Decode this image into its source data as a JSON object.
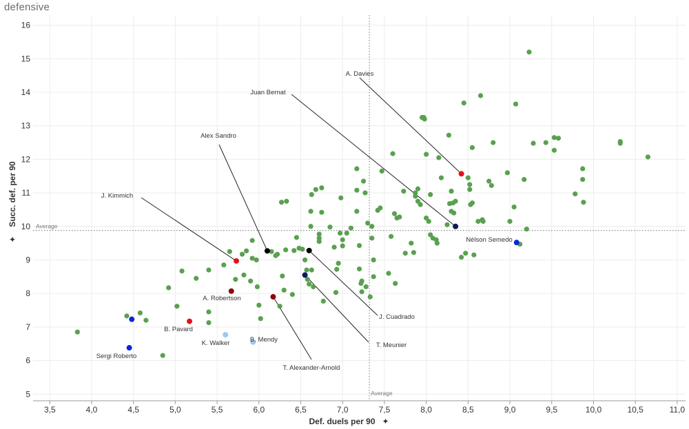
{
  "title": "defensive",
  "chart_data": {
    "type": "scatter",
    "xlabel": "Def. duels per 90",
    "ylabel": "Succ. def. per 90",
    "xlim": [
      3.3,
      11.1
    ],
    "ylim": [
      4.8,
      16.3
    ],
    "x_ticks": [
      3.5,
      4.0,
      4.5,
      5.0,
      5.5,
      6.0,
      6.5,
      7.0,
      7.5,
      8.0,
      8.5,
      9.0,
      9.5,
      10.0,
      10.5,
      11.0
    ],
    "x_tick_labels": [
      "3,5",
      "4,0",
      "4,5",
      "5,0",
      "5,5",
      "6,0",
      "6,5",
      "7,0",
      "7,5",
      "8,0",
      "8,5",
      "9,0",
      "9,5",
      "10,0",
      "10,5",
      "11,0"
    ],
    "y_ticks": [
      5,
      6,
      7,
      8,
      9,
      10,
      11,
      12,
      13,
      14,
      15,
      16
    ],
    "grid": true,
    "reference_lines": [
      {
        "axis": "x",
        "value": 7.32,
        "label": "Average"
      },
      {
        "axis": "y",
        "value": 9.88,
        "label": "Average"
      }
    ],
    "colors": {
      "default": "#59a14f",
      "red": "#e8101a",
      "dark_red": "#8b0a0a",
      "blue": "#0a28d8",
      "navy": "#0a1a5a",
      "black": "#000000",
      "light_blue": "#9fc8ea"
    },
    "points": [
      {
        "x": 3.83,
        "y": 6.85
      },
      {
        "x": 4.42,
        "y": 7.33
      },
      {
        "x": 4.58,
        "y": 7.42
      },
      {
        "x": 4.65,
        "y": 7.2
      },
      {
        "x": 4.85,
        "y": 6.15
      },
      {
        "x": 4.92,
        "y": 8.17
      },
      {
        "x": 5.02,
        "y": 7.62
      },
      {
        "x": 5.08,
        "y": 8.67
      },
      {
        "x": 5.25,
        "y": 8.45
      },
      {
        "x": 5.4,
        "y": 7.13
      },
      {
        "x": 5.4,
        "y": 7.45
      },
      {
        "x": 5.4,
        "y": 8.7
      },
      {
        "x": 5.58,
        "y": 8.85
      },
      {
        "x": 5.65,
        "y": 9.25
      },
      {
        "x": 5.72,
        "y": 8.42
      },
      {
        "x": 5.8,
        "y": 9.17
      },
      {
        "x": 5.82,
        "y": 8.55
      },
      {
        "x": 5.85,
        "y": 9.27
      },
      {
        "x": 5.9,
        "y": 8.37
      },
      {
        "x": 5.92,
        "y": 9.58
      },
      {
        "x": 5.92,
        "y": 9.05
      },
      {
        "x": 5.97,
        "y": 9.0
      },
      {
        "x": 5.98,
        "y": 8.2
      },
      {
        "x": 6.0,
        "y": 7.65
      },
      {
        "x": 6.02,
        "y": 7.25
      },
      {
        "x": 6.15,
        "y": 9.25
      },
      {
        "x": 6.2,
        "y": 9.13
      },
      {
        "x": 6.22,
        "y": 9.17
      },
      {
        "x": 6.25,
        "y": 7.62
      },
      {
        "x": 6.27,
        "y": 10.72
      },
      {
        "x": 6.28,
        "y": 8.52
      },
      {
        "x": 6.3,
        "y": 8.1
      },
      {
        "x": 6.32,
        "y": 9.3
      },
      {
        "x": 6.33,
        "y": 10.75
      },
      {
        "x": 6.4,
        "y": 7.97
      },
      {
        "x": 6.42,
        "y": 9.28
      },
      {
        "x": 6.45,
        "y": 9.67
      },
      {
        "x": 6.48,
        "y": 9.35
      },
      {
        "x": 6.52,
        "y": 9.32
      },
      {
        "x": 6.55,
        "y": 9.0
      },
      {
        "x": 6.57,
        "y": 8.7
      },
      {
        "x": 6.58,
        "y": 8.42
      },
      {
        "x": 6.6,
        "y": 8.28
      },
      {
        "x": 6.62,
        "y": 10.45
      },
      {
        "x": 6.62,
        "y": 10.0
      },
      {
        "x": 6.63,
        "y": 10.95
      },
      {
        "x": 6.63,
        "y": 8.7
      },
      {
        "x": 6.65,
        "y": 8.2
      },
      {
        "x": 6.68,
        "y": 11.1
      },
      {
        "x": 6.72,
        "y": 9.55
      },
      {
        "x": 6.72,
        "y": 9.65
      },
      {
        "x": 6.72,
        "y": 9.77
      },
      {
        "x": 6.75,
        "y": 11.15
      },
      {
        "x": 6.75,
        "y": 10.42
      },
      {
        "x": 6.77,
        "y": 7.77
      },
      {
        "x": 6.85,
        "y": 9.98
      },
      {
        "x": 6.9,
        "y": 9.38
      },
      {
        "x": 6.92,
        "y": 8.03
      },
      {
        "x": 6.93,
        "y": 8.72
      },
      {
        "x": 6.95,
        "y": 8.9
      },
      {
        "x": 6.97,
        "y": 9.8
      },
      {
        "x": 6.98,
        "y": 10.85
      },
      {
        "x": 7.0,
        "y": 9.6
      },
      {
        "x": 7.0,
        "y": 9.42
      },
      {
        "x": 7.05,
        "y": 9.8
      },
      {
        "x": 7.1,
        "y": 9.95
      },
      {
        "x": 7.17,
        "y": 11.72
      },
      {
        "x": 7.17,
        "y": 11.08
      },
      {
        "x": 7.17,
        "y": 10.45
      },
      {
        "x": 7.2,
        "y": 9.43
      },
      {
        "x": 7.2,
        "y": 8.73
      },
      {
        "x": 7.22,
        "y": 8.3
      },
      {
        "x": 7.23,
        "y": 8.05
      },
      {
        "x": 7.23,
        "y": 8.37
      },
      {
        "x": 7.25,
        "y": 11.35
      },
      {
        "x": 7.27,
        "y": 11.0
      },
      {
        "x": 7.28,
        "y": 8.2
      },
      {
        "x": 7.3,
        "y": 10.1
      },
      {
        "x": 7.33,
        "y": 7.9
      },
      {
        "x": 7.35,
        "y": 10.0
      },
      {
        "x": 7.35,
        "y": 9.65
      },
      {
        "x": 7.37,
        "y": 9.0
      },
      {
        "x": 7.37,
        "y": 8.5
      },
      {
        "x": 7.42,
        "y": 10.48
      },
      {
        "x": 7.45,
        "y": 10.55
      },
      {
        "x": 7.47,
        "y": 11.65
      },
      {
        "x": 7.55,
        "y": 8.6
      },
      {
        "x": 7.58,
        "y": 9.7
      },
      {
        "x": 7.6,
        "y": 12.17
      },
      {
        "x": 7.62,
        "y": 10.38
      },
      {
        "x": 7.63,
        "y": 8.3
      },
      {
        "x": 7.65,
        "y": 10.25
      },
      {
        "x": 7.68,
        "y": 10.28
      },
      {
        "x": 7.73,
        "y": 11.05
      },
      {
        "x": 7.75,
        "y": 9.2
      },
      {
        "x": 7.82,
        "y": 9.5
      },
      {
        "x": 7.85,
        "y": 9.22
      },
      {
        "x": 7.87,
        "y": 11.0
      },
      {
        "x": 7.87,
        "y": 10.9
      },
      {
        "x": 7.9,
        "y": 11.12
      },
      {
        "x": 7.9,
        "y": 10.75
      },
      {
        "x": 7.93,
        "y": 10.65
      },
      {
        "x": 7.95,
        "y": 13.25
      },
      {
        "x": 7.97,
        "y": 13.25
      },
      {
        "x": 7.98,
        "y": 13.2
      },
      {
        "x": 8.0,
        "y": 12.15
      },
      {
        "x": 8.0,
        "y": 10.25
      },
      {
        "x": 8.03,
        "y": 10.15
      },
      {
        "x": 8.05,
        "y": 9.75
      },
      {
        "x": 8.05,
        "y": 10.95
      },
      {
        "x": 8.08,
        "y": 9.65
      },
      {
        "x": 8.12,
        "y": 9.6
      },
      {
        "x": 8.13,
        "y": 9.5
      },
      {
        "x": 8.15,
        "y": 12.05
      },
      {
        "x": 8.18,
        "y": 11.45
      },
      {
        "x": 8.25,
        "y": 10.05
      },
      {
        "x": 8.27,
        "y": 12.72
      },
      {
        "x": 8.28,
        "y": 10.68
      },
      {
        "x": 8.3,
        "y": 10.45
      },
      {
        "x": 8.3,
        "y": 11.05
      },
      {
        "x": 8.32,
        "y": 10.7
      },
      {
        "x": 8.33,
        "y": 10.4
      },
      {
        "x": 8.35,
        "y": 10.75
      },
      {
        "x": 8.42,
        "y": 9.08
      },
      {
        "x": 8.45,
        "y": 13.68
      },
      {
        "x": 8.47,
        "y": 9.2
      },
      {
        "x": 8.5,
        "y": 11.45
      },
      {
        "x": 8.52,
        "y": 11.1
      },
      {
        "x": 8.52,
        "y": 11.25
      },
      {
        "x": 8.53,
        "y": 10.65
      },
      {
        "x": 8.55,
        "y": 10.7
      },
      {
        "x": 8.55,
        "y": 12.35
      },
      {
        "x": 8.57,
        "y": 9.15
      },
      {
        "x": 8.62,
        "y": 10.15
      },
      {
        "x": 8.65,
        "y": 13.9
      },
      {
        "x": 8.67,
        "y": 10.2
      },
      {
        "x": 8.68,
        "y": 10.15
      },
      {
        "x": 8.75,
        "y": 11.35
      },
      {
        "x": 8.78,
        "y": 11.22
      },
      {
        "x": 8.8,
        "y": 12.5
      },
      {
        "x": 8.97,
        "y": 11.6
      },
      {
        "x": 9.0,
        "y": 10.15
      },
      {
        "x": 9.05,
        "y": 10.58
      },
      {
        "x": 9.07,
        "y": 13.65
      },
      {
        "x": 9.12,
        "y": 9.47
      },
      {
        "x": 9.17,
        "y": 11.4
      },
      {
        "x": 9.2,
        "y": 9.92
      },
      {
        "x": 9.23,
        "y": 15.2
      },
      {
        "x": 9.28,
        "y": 12.48
      },
      {
        "x": 9.43,
        "y": 12.5
      },
      {
        "x": 9.53,
        "y": 12.27
      },
      {
        "x": 9.53,
        "y": 12.65
      },
      {
        "x": 9.58,
        "y": 12.63
      },
      {
        "x": 9.78,
        "y": 10.97
      },
      {
        "x": 9.87,
        "y": 11.72
      },
      {
        "x": 9.87,
        "y": 11.4
      },
      {
        "x": 9.88,
        "y": 10.72
      },
      {
        "x": 10.32,
        "y": 12.53
      },
      {
        "x": 10.32,
        "y": 12.48
      },
      {
        "x": 10.65,
        "y": 12.07
      }
    ],
    "highlighted": [
      {
        "name": "A. Davies",
        "x": 8.42,
        "y": 11.57,
        "color": "red"
      },
      {
        "name": "Juan Bernat",
        "x": 8.35,
        "y": 10.0,
        "color": "navy"
      },
      {
        "name": "Alex Sandro",
        "x": 6.1,
        "y": 9.27,
        "color": "black"
      },
      {
        "name": "J. Kimmich",
        "x": 5.73,
        "y": 8.97,
        "color": "red"
      },
      {
        "name": "Nélson Semedo",
        "x": 9.08,
        "y": 9.52,
        "color": "blue"
      },
      {
        "name": "J. Cuadrado",
        "x": 6.6,
        "y": 9.28,
        "color": "black"
      },
      {
        "name": "T. Meunier",
        "x": 6.55,
        "y": 8.55,
        "color": "navy"
      },
      {
        "name": "A. Robertson",
        "x": 5.67,
        "y": 8.07,
        "color": "dark_red"
      },
      {
        "name": "T. Alexander-Arnold",
        "x": 6.17,
        "y": 7.9,
        "color": "dark_red"
      },
      {
        "name": "B. Pavard",
        "x": 5.17,
        "y": 7.17,
        "color": "red"
      },
      {
        "name": "K. Walker",
        "x": 5.6,
        "y": 6.77,
        "color": "light_blue"
      },
      {
        "name": "B. Mendy",
        "x": 5.93,
        "y": 6.55,
        "color": "light_blue"
      },
      {
        "name": "Sergi Roberto",
        "x": 4.48,
        "y": 7.23,
        "color": "blue"
      },
      {
        "name": "Sergi Roberto",
        "x": 4.45,
        "y": 6.38,
        "color": "blue"
      }
    ]
  }
}
